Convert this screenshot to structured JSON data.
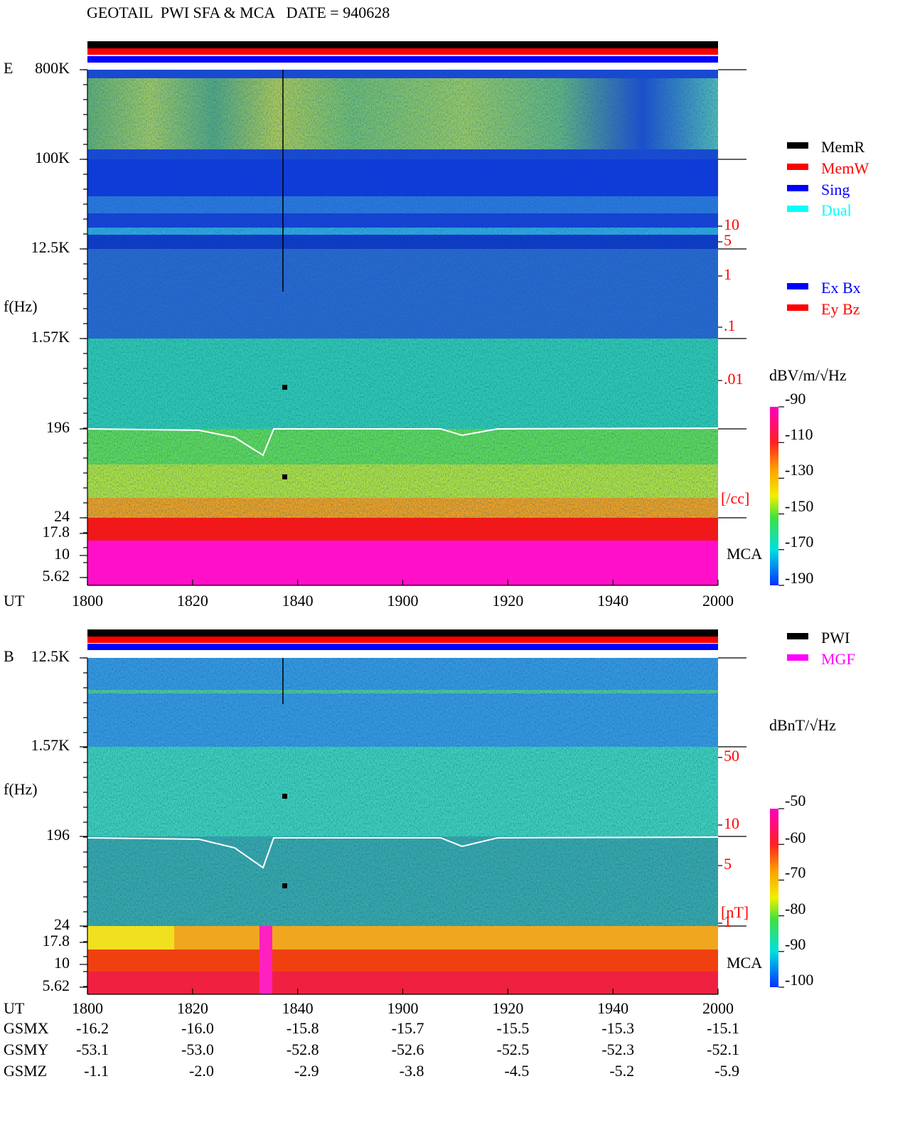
{
  "header": {
    "title": "GEOTAIL  PWI SFA & MCA   DATE = 940628"
  },
  "panels": [
    {
      "id": "E",
      "y_axis_label": "f(Hz)",
      "x_axis_label": "UT",
      "y_ticks": [
        "800K",
        "100K",
        "12.5K",
        "1.57K",
        "196",
        "24",
        "17.8",
        "10",
        "5.62"
      ],
      "x_ticks": [
        "1800",
        "1820",
        "1840",
        "1900",
        "1920",
        "1940",
        "2000"
      ],
      "right_scale": [
        "10",
        "5",
        "1",
        ".1",
        ".01"
      ],
      "right_unit": "[/cc]",
      "mca_label": "MCA",
      "legend": [
        {
          "label": "MemR",
          "color": "#000000"
        },
        {
          "label": "MemW",
          "color": "#ff0000"
        },
        {
          "label": "Sing",
          "color": "#0000ff"
        },
        {
          "label": "Dual",
          "color": "#00ffff"
        }
      ],
      "legend2": [
        {
          "label": "Ex Bx",
          "color": "#0000ff"
        },
        {
          "label": "Ey Bz",
          "color": "#ff0000"
        }
      ],
      "colorbar_label": "dBV/m/√Hz",
      "colorbar_ticks": [
        "-90",
        "-110",
        "-130",
        "-150",
        "-170",
        "-190"
      ]
    },
    {
      "id": "B",
      "y_axis_label": "f(Hz)",
      "x_axis_label": "UT",
      "y_ticks": [
        "12.5K",
        "1.57K",
        "196",
        "24",
        "17.8",
        "10",
        "5.62"
      ],
      "x_ticks": [
        "1800",
        "1820",
        "1840",
        "1900",
        "1920",
        "1940",
        "2000"
      ],
      "right_scale": [
        "50",
        "10",
        "5",
        "1"
      ],
      "right_unit": "[nT]",
      "mca_label": "MCA",
      "legend": [
        {
          "label": "PWI",
          "color": "#000000"
        },
        {
          "label": "MGF",
          "color": "#ff00ff"
        }
      ],
      "colorbar_label": "dBnT/√Hz",
      "colorbar_ticks": [
        "-50",
        "-60",
        "-70",
        "-80",
        "-90",
        "-100"
      ]
    }
  ],
  "orbit": {
    "rows": [
      {
        "label": "GSMX",
        "values": [
          "-16.2",
          "-16.0",
          "-15.8",
          "-15.7",
          "-15.5",
          "-15.3",
          "-15.1"
        ]
      },
      {
        "label": "GSMY",
        "values": [
          "-53.1",
          "-53.0",
          "-52.8",
          "-52.6",
          "-52.5",
          "-52.3",
          "-52.1"
        ]
      },
      {
        "label": "GSMZ",
        "values": [
          "-1.1",
          "-2.0",
          "-2.9",
          "-3.8",
          "-4.5",
          "-5.2",
          "-5.9"
        ]
      }
    ]
  }
}
